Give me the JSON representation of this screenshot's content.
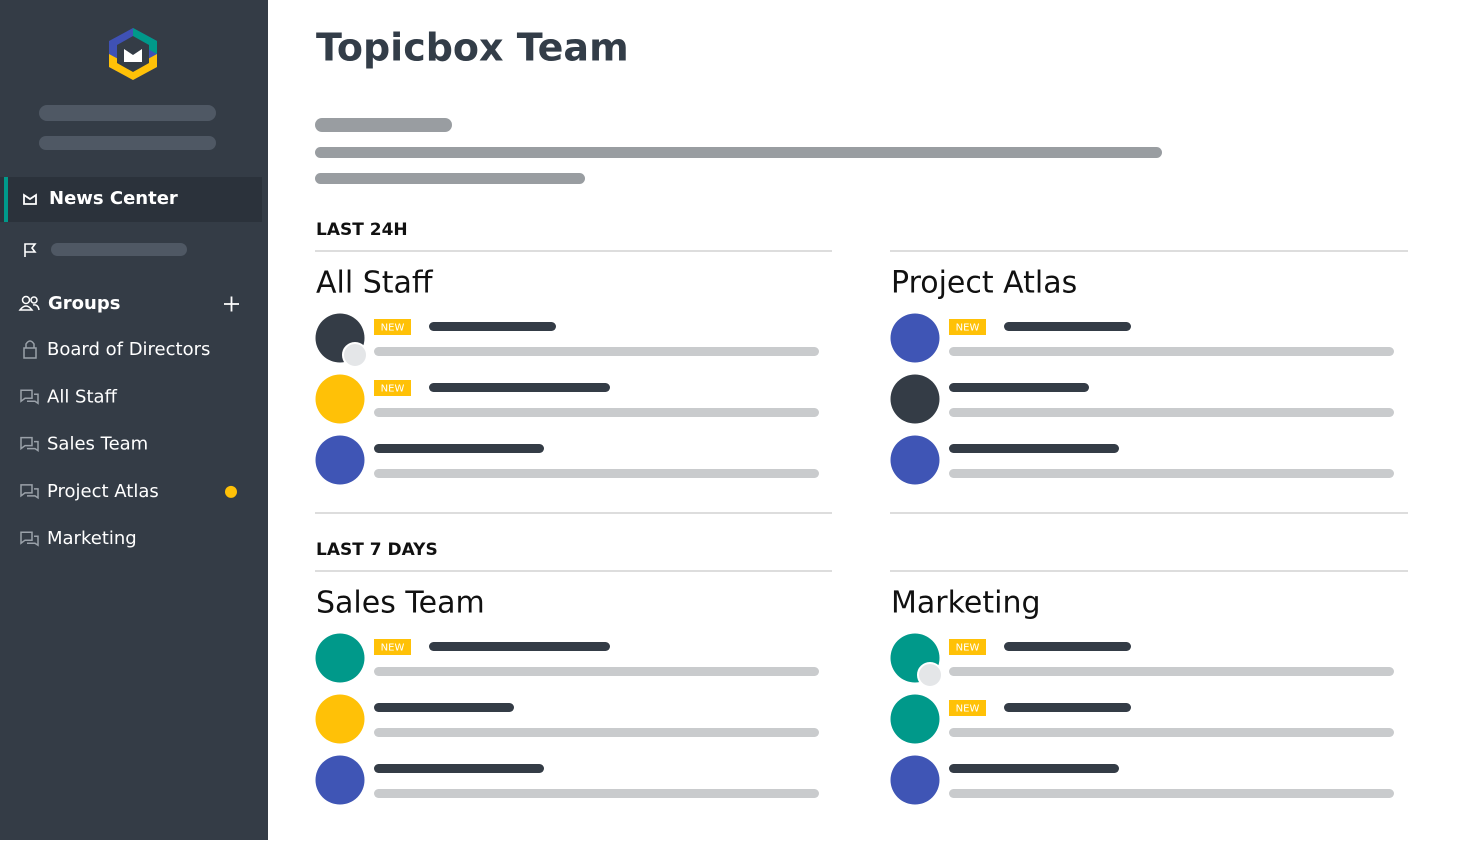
{
  "sidebar": {
    "nav": [
      "News Center"
    ],
    "groups_label": "Groups",
    "groups": [
      "Board of Directors",
      "All Staff",
      "Sales Team",
      "Project Atlas",
      "Marketing"
    ]
  },
  "header": {
    "title": "Topicbox Team"
  },
  "sections": [
    {
      "label": "LAST 24H",
      "groups": [
        {
          "name": "All Staff",
          "badges": [
            "NEW",
            "NEW"
          ]
        },
        {
          "name": "Project Atlas",
          "badges": [
            "NEW"
          ]
        }
      ]
    },
    {
      "label": "LAST 7 DAYS",
      "groups": [
        {
          "name": "Sales Team",
          "badges": [
            "NEW"
          ]
        },
        {
          "name": "Marketing",
          "badges": [
            "NEW",
            "NEW"
          ]
        }
      ]
    }
  ]
}
